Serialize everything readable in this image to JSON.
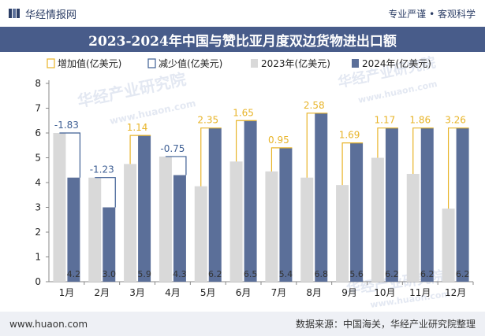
{
  "header": {
    "brand": "华经情报网",
    "slogan": "专业严谨 • 客观科学"
  },
  "footer": {
    "website": "www.huaon.com",
    "source": "数据来源：中国海关，华经产业研究院整理"
  },
  "watermark": {
    "text": "华经产业研究院",
    "url": "www.huaon.com"
  },
  "colors": {
    "bar_2023": "#d9d9d9",
    "bar_2024": "#5b6f99",
    "increase": "#e8b428",
    "decrease": "#3e5f94",
    "title_bg": "#485c8a"
  },
  "chart_data": {
    "type": "bar",
    "title": "2023-2024年中国与赞比亚月度双边货物进出口额",
    "categories": [
      "1月",
      "2月",
      "3月",
      "4月",
      "5月",
      "6月",
      "7月",
      "8月",
      "9月",
      "10月",
      "11月",
      "12月"
    ],
    "series": [
      {
        "name": "2023年(亿美元)",
        "values": [
          6.0,
          4.2,
          4.75,
          5.05,
          3.85,
          4.85,
          4.45,
          4.2,
          3.9,
          5.0,
          4.35,
          2.95
        ]
      },
      {
        "name": "2024年(亿美元)",
        "values": [
          4.2,
          3.0,
          5.9,
          4.3,
          6.2,
          6.5,
          5.4,
          6.8,
          5.6,
          6.2,
          6.2,
          6.2
        ]
      }
    ],
    "value_labels_2024": [
      "4.2",
      "3.0",
      "5.9",
      "4.3",
      "6.2",
      "6.5",
      "5.4",
      "6.8",
      "5.6",
      "6.2",
      "6.2",
      "6.2"
    ],
    "change_legend": {
      "increase": "增加值(亿美元)",
      "decrease": "减少值(亿美元)"
    },
    "changes": [
      -1.83,
      -1.23,
      1.14,
      -0.75,
      2.35,
      1.65,
      0.95,
      2.58,
      1.69,
      1.17,
      1.86,
      3.26
    ],
    "change_labels": [
      "-1.83",
      "-1.23",
      "1.14",
      "-0.75",
      "2.35",
      "1.65",
      "0.95",
      "2.58",
      "1.69",
      "1.17",
      "1.86",
      "3.26"
    ],
    "ylim": [
      0,
      8
    ],
    "yticks": [
      "0",
      "1",
      "2",
      "3",
      "4",
      "5",
      "6",
      "7",
      "8"
    ],
    "grid": false,
    "legend_position": "top-left"
  }
}
